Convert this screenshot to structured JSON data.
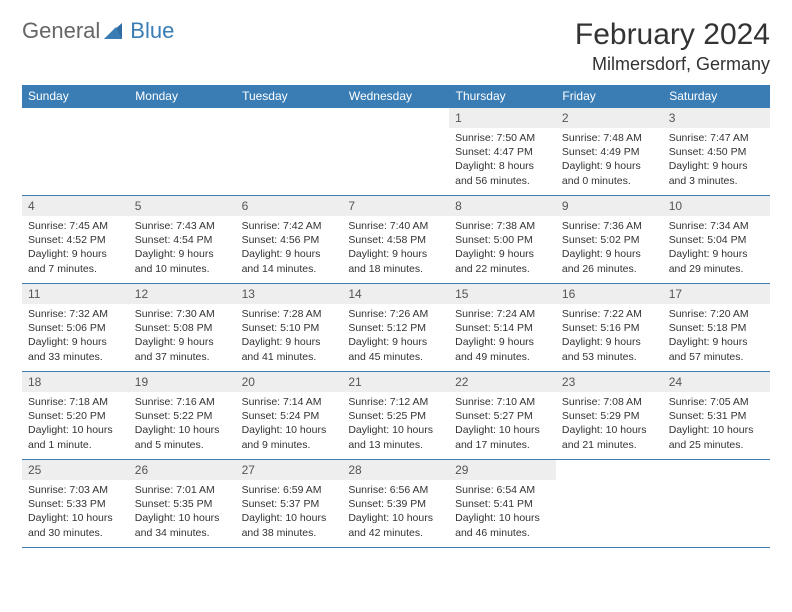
{
  "logo": {
    "general": "General",
    "blue": "Blue"
  },
  "header": {
    "title": "February 2024",
    "location": "Milmersdorf, Germany"
  },
  "colors": {
    "accent": "#3a7db5",
    "dayrow_bg": "#eeeeee",
    "text": "#333333",
    "logo_gray": "#666666"
  },
  "weekdays": [
    "Sunday",
    "Monday",
    "Tuesday",
    "Wednesday",
    "Thursday",
    "Friday",
    "Saturday"
  ],
  "rows": [
    [
      null,
      null,
      null,
      null,
      {
        "n": "1",
        "sr": "Sunrise: 7:50 AM",
        "ss": "Sunset: 4:47 PM",
        "dl": "Daylight: 8 hours and 56 minutes."
      },
      {
        "n": "2",
        "sr": "Sunrise: 7:48 AM",
        "ss": "Sunset: 4:49 PM",
        "dl": "Daylight: 9 hours and 0 minutes."
      },
      {
        "n": "3",
        "sr": "Sunrise: 7:47 AM",
        "ss": "Sunset: 4:50 PM",
        "dl": "Daylight: 9 hours and 3 minutes."
      }
    ],
    [
      {
        "n": "4",
        "sr": "Sunrise: 7:45 AM",
        "ss": "Sunset: 4:52 PM",
        "dl": "Daylight: 9 hours and 7 minutes."
      },
      {
        "n": "5",
        "sr": "Sunrise: 7:43 AM",
        "ss": "Sunset: 4:54 PM",
        "dl": "Daylight: 9 hours and 10 minutes."
      },
      {
        "n": "6",
        "sr": "Sunrise: 7:42 AM",
        "ss": "Sunset: 4:56 PM",
        "dl": "Daylight: 9 hours and 14 minutes."
      },
      {
        "n": "7",
        "sr": "Sunrise: 7:40 AM",
        "ss": "Sunset: 4:58 PM",
        "dl": "Daylight: 9 hours and 18 minutes."
      },
      {
        "n": "8",
        "sr": "Sunrise: 7:38 AM",
        "ss": "Sunset: 5:00 PM",
        "dl": "Daylight: 9 hours and 22 minutes."
      },
      {
        "n": "9",
        "sr": "Sunrise: 7:36 AM",
        "ss": "Sunset: 5:02 PM",
        "dl": "Daylight: 9 hours and 26 minutes."
      },
      {
        "n": "10",
        "sr": "Sunrise: 7:34 AM",
        "ss": "Sunset: 5:04 PM",
        "dl": "Daylight: 9 hours and 29 minutes."
      }
    ],
    [
      {
        "n": "11",
        "sr": "Sunrise: 7:32 AM",
        "ss": "Sunset: 5:06 PM",
        "dl": "Daylight: 9 hours and 33 minutes."
      },
      {
        "n": "12",
        "sr": "Sunrise: 7:30 AM",
        "ss": "Sunset: 5:08 PM",
        "dl": "Daylight: 9 hours and 37 minutes."
      },
      {
        "n": "13",
        "sr": "Sunrise: 7:28 AM",
        "ss": "Sunset: 5:10 PM",
        "dl": "Daylight: 9 hours and 41 minutes."
      },
      {
        "n": "14",
        "sr": "Sunrise: 7:26 AM",
        "ss": "Sunset: 5:12 PM",
        "dl": "Daylight: 9 hours and 45 minutes."
      },
      {
        "n": "15",
        "sr": "Sunrise: 7:24 AM",
        "ss": "Sunset: 5:14 PM",
        "dl": "Daylight: 9 hours and 49 minutes."
      },
      {
        "n": "16",
        "sr": "Sunrise: 7:22 AM",
        "ss": "Sunset: 5:16 PM",
        "dl": "Daylight: 9 hours and 53 minutes."
      },
      {
        "n": "17",
        "sr": "Sunrise: 7:20 AM",
        "ss": "Sunset: 5:18 PM",
        "dl": "Daylight: 9 hours and 57 minutes."
      }
    ],
    [
      {
        "n": "18",
        "sr": "Sunrise: 7:18 AM",
        "ss": "Sunset: 5:20 PM",
        "dl": "Daylight: 10 hours and 1 minute."
      },
      {
        "n": "19",
        "sr": "Sunrise: 7:16 AM",
        "ss": "Sunset: 5:22 PM",
        "dl": "Daylight: 10 hours and 5 minutes."
      },
      {
        "n": "20",
        "sr": "Sunrise: 7:14 AM",
        "ss": "Sunset: 5:24 PM",
        "dl": "Daylight: 10 hours and 9 minutes."
      },
      {
        "n": "21",
        "sr": "Sunrise: 7:12 AM",
        "ss": "Sunset: 5:25 PM",
        "dl": "Daylight: 10 hours and 13 minutes."
      },
      {
        "n": "22",
        "sr": "Sunrise: 7:10 AM",
        "ss": "Sunset: 5:27 PM",
        "dl": "Daylight: 10 hours and 17 minutes."
      },
      {
        "n": "23",
        "sr": "Sunrise: 7:08 AM",
        "ss": "Sunset: 5:29 PM",
        "dl": "Daylight: 10 hours and 21 minutes."
      },
      {
        "n": "24",
        "sr": "Sunrise: 7:05 AM",
        "ss": "Sunset: 5:31 PM",
        "dl": "Daylight: 10 hours and 25 minutes."
      }
    ],
    [
      {
        "n": "25",
        "sr": "Sunrise: 7:03 AM",
        "ss": "Sunset: 5:33 PM",
        "dl": "Daylight: 10 hours and 30 minutes."
      },
      {
        "n": "26",
        "sr": "Sunrise: 7:01 AM",
        "ss": "Sunset: 5:35 PM",
        "dl": "Daylight: 10 hours and 34 minutes."
      },
      {
        "n": "27",
        "sr": "Sunrise: 6:59 AM",
        "ss": "Sunset: 5:37 PM",
        "dl": "Daylight: 10 hours and 38 minutes."
      },
      {
        "n": "28",
        "sr": "Sunrise: 6:56 AM",
        "ss": "Sunset: 5:39 PM",
        "dl": "Daylight: 10 hours and 42 minutes."
      },
      {
        "n": "29",
        "sr": "Sunrise: 6:54 AM",
        "ss": "Sunset: 5:41 PM",
        "dl": "Daylight: 10 hours and 46 minutes."
      },
      null,
      null
    ]
  ]
}
